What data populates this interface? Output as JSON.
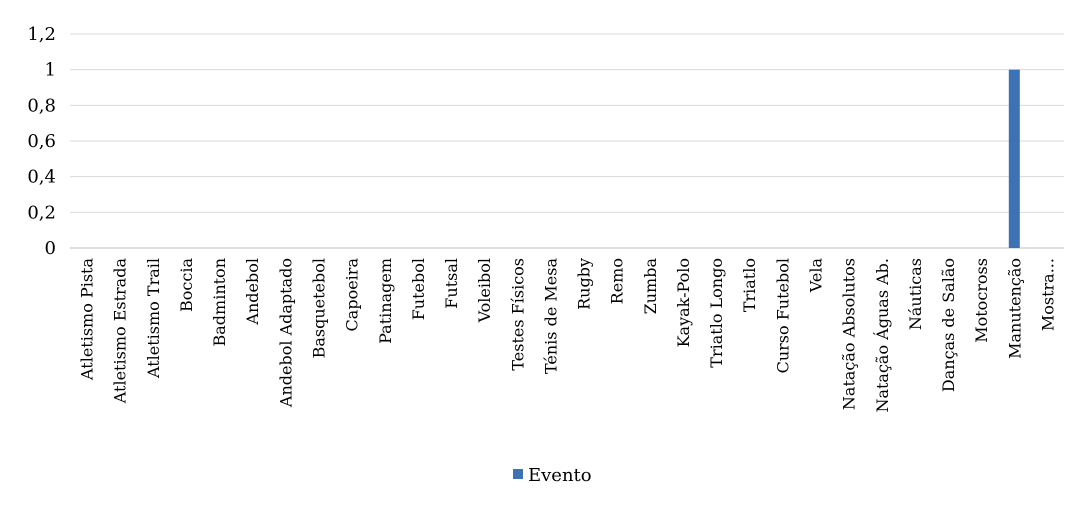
{
  "chart_data": {
    "type": "bar",
    "categories": [
      "Atletismo Pista",
      "Atletismo Estrada",
      "Atletismo Trail",
      "Boccia",
      "Badminton",
      "Andebol",
      "Andebol Adaptado",
      "Basquetebol",
      "Capoeira",
      "Patinagem",
      "Futebol",
      "Futsal",
      "Voleibol",
      "Testes Físicos",
      "Ténis de Mesa",
      "Rugby",
      "Remo",
      "Zumba",
      "Kayak-Polo",
      "Triatlo Longo",
      "Triatlo",
      "Curso Futebol",
      "Vela",
      "Natação Absolutos",
      "Natação Águas Ab.",
      "Náuticas",
      "Danças de Salão",
      "Motocross",
      "Manutenção",
      "Mostra..."
    ],
    "series": [
      {
        "name": "Evento",
        "color": "#3d72b4",
        "values": [
          0,
          0,
          0,
          0,
          0,
          0,
          0,
          0,
          0,
          0,
          0,
          0,
          0,
          0,
          0,
          0,
          0,
          0,
          0,
          0,
          0,
          0,
          0,
          0,
          0,
          0,
          0,
          0,
          1,
          0
        ]
      }
    ],
    "y_ticks": [
      "0",
      "0,2",
      "0,4",
      "0,6",
      "0,8",
      "1",
      "1,2"
    ],
    "ylim": [
      0,
      1.2
    ],
    "grid": true,
    "legend": "bottom"
  }
}
